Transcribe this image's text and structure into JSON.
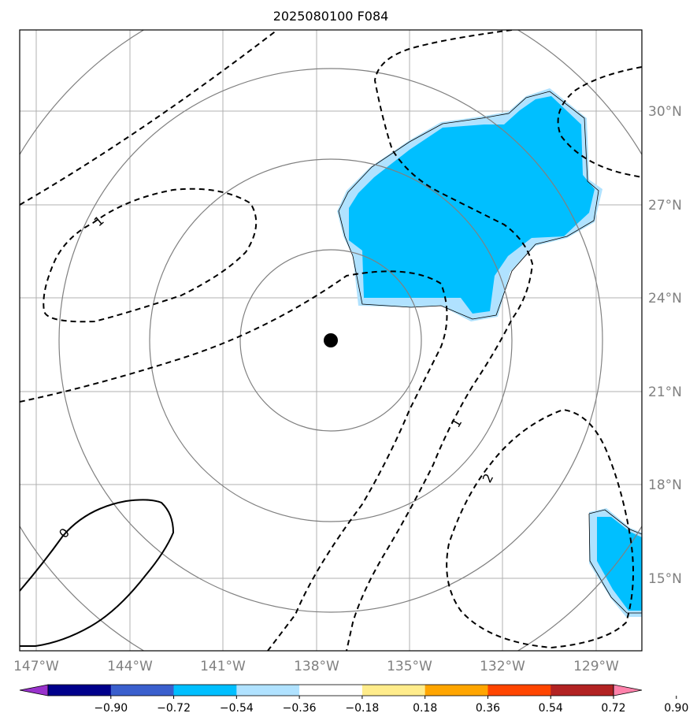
{
  "title": "2025080100 F084",
  "x_ticks": [
    "147°W",
    "144°W",
    "141°W",
    "138°W",
    "135°W",
    "132°W",
    "129°W"
  ],
  "y_ticks": [
    "30°N",
    "27°N",
    "24°N",
    "21°N",
    "18°N",
    "15°N"
  ],
  "contour_labels": [
    "1",
    "1",
    "2",
    "0"
  ],
  "colorbar": {
    "ticks": [
      "−0.90",
      "−0.72",
      "−0.54",
      "−0.36",
      "−0.18",
      "0.18",
      "0.36",
      "0.54",
      "0.72",
      "0.90"
    ],
    "colors": [
      "#9932CC",
      "#00008B",
      "#3A5FCD",
      "#00BFFF",
      "#B0E2FF",
      "#FFFFFF",
      "#FFEC8B",
      "#FFA500",
      "#FF4500",
      "#B22222",
      "#FF82AB"
    ]
  },
  "colors": {
    "grid": "#b0b0b0",
    "range_rings": "#808080",
    "fill_strong": "#00BFFF",
    "fill_light": "#B0E2FF",
    "center_marker": "#000000"
  }
}
